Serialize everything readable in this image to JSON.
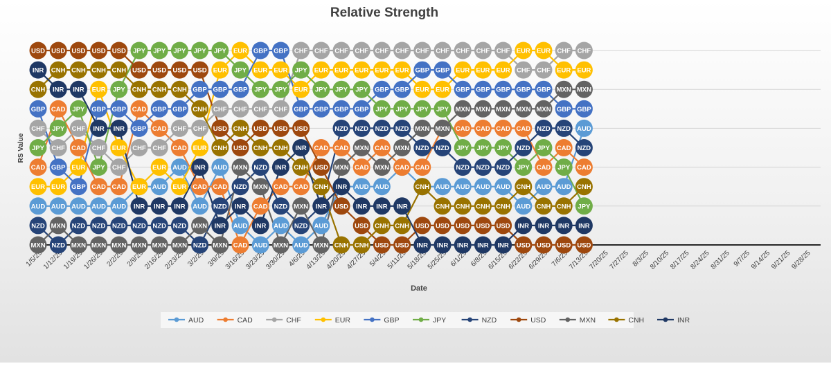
{
  "chart_data": {
    "type": "line",
    "title": "Relative Strength",
    "xlabel": "Date",
    "ylabel": "RS Value",
    "x": [
      "1/5/25",
      "1/12/25",
      "1/19/25",
      "1/26/25",
      "2/2/25",
      "2/9/25",
      "2/16/25",
      "2/23/25",
      "3/2/25",
      "3/9/25",
      "3/16/25",
      "3/23/25",
      "3/30/25",
      "4/6/25",
      "4/13/25",
      "4/20/25",
      "4/27/25",
      "5/4/25",
      "5/11/25",
      "5/18/25",
      "5/25/25",
      "6/1/25",
      "6/8/25",
      "6/15/25",
      "6/22/25",
      "6/29/25",
      "7/6/25",
      "7/13/25",
      "7/20/25",
      "7/27/25",
      "8/3/25",
      "8/10/25",
      "8/17/25",
      "8/24/25",
      "8/31/25",
      "9/7/25",
      "9/14/25",
      "9/21/25",
      "9/28/25"
    ],
    "ylim": [
      1,
      11
    ],
    "grid": true,
    "legend_position": "bottom",
    "series": [
      {
        "name": "AUD",
        "color": "#5b9bd5",
        "values": [
          3,
          3,
          3,
          3,
          3,
          4,
          4,
          5,
          3,
          5,
          2,
          1,
          2,
          1,
          2,
          4,
          4,
          4,
          5,
          4,
          4,
          4,
          4,
          4,
          3,
          4,
          4,
          7,
          null,
          null,
          null,
          null,
          null,
          null,
          null,
          null,
          null,
          null,
          null
        ]
      },
      {
        "name": "CAD",
        "color": "#ed7d31",
        "values": [
          5,
          8,
          6,
          4,
          4,
          8,
          7,
          6,
          4,
          4,
          1,
          3,
          4,
          4,
          6,
          6,
          5,
          6,
          5,
          5,
          7,
          7,
          7,
          7,
          7,
          5,
          6,
          5,
          null,
          null,
          null,
          null,
          null,
          null,
          null,
          null,
          null,
          null,
          null
        ]
      },
      {
        "name": "CHF",
        "color": "#a5a5a5",
        "values": [
          7,
          6,
          7,
          6,
          5,
          6,
          6,
          7,
          7,
          8,
          8,
          8,
          8,
          11,
          11,
          11,
          11,
          11,
          11,
          11,
          11,
          11,
          11,
          11,
          10,
          10,
          11,
          11,
          null,
          null,
          null,
          null,
          null,
          null,
          null,
          null,
          null,
          null,
          null
        ]
      },
      {
        "name": "EUR",
        "color": "#ffc000",
        "values": [
          4,
          4,
          5,
          9,
          6,
          4,
          5,
          4,
          6,
          10,
          11,
          10,
          10,
          9,
          10,
          10,
          10,
          10,
          10,
          9,
          9,
          10,
          10,
          10,
          11,
          11,
          10,
          10,
          null,
          null,
          null,
          null,
          null,
          null,
          null,
          null,
          null,
          null,
          null
        ]
      },
      {
        "name": "GBP",
        "color": "#4472c4",
        "values": [
          8,
          5,
          4,
          8,
          8,
          7,
          8,
          8,
          9,
          9,
          9,
          11,
          11,
          8,
          8,
          8,
          8,
          9,
          9,
          10,
          10,
          9,
          9,
          9,
          9,
          9,
          8,
          8,
          null,
          null,
          null,
          null,
          null,
          null,
          null,
          null,
          null,
          null,
          null
        ]
      },
      {
        "name": "JPY",
        "color": "#70ad47",
        "values": [
          6,
          7,
          8,
          5,
          9,
          11,
          11,
          11,
          11,
          11,
          10,
          9,
          9,
          10,
          9,
          9,
          9,
          8,
          8,
          8,
          8,
          6,
          6,
          6,
          5,
          6,
          5,
          3,
          null,
          null,
          null,
          null,
          null,
          null,
          null,
          null,
          null,
          null,
          null
        ]
      },
      {
        "name": "NZD",
        "color": "#264478",
        "values": [
          2,
          1,
          2,
          2,
          2,
          2,
          2,
          2,
          1,
          3,
          4,
          5,
          3,
          2,
          3,
          7,
          7,
          7,
          7,
          6,
          6,
          5,
          5,
          5,
          6,
          7,
          7,
          6,
          null,
          null,
          null,
          null,
          null,
          null,
          null,
          null,
          null,
          null,
          null
        ]
      },
      {
        "name": "USD",
        "color": "#9e480e",
        "values": [
          11,
          11,
          11,
          11,
          11,
          10,
          10,
          10,
          10,
          7,
          6,
          7,
          7,
          7,
          5,
          3,
          2,
          1,
          1,
          2,
          2,
          2,
          2,
          2,
          1,
          1,
          1,
          1,
          null,
          null,
          null,
          null,
          null,
          null,
          null,
          null,
          null,
          null,
          null
        ]
      },
      {
        "name": "MXN",
        "color": "#636363",
        "values": [
          1,
          2,
          1,
          1,
          1,
          1,
          1,
          1,
          2,
          1,
          5,
          4,
          1,
          3,
          1,
          5,
          6,
          5,
          6,
          7,
          7,
          8,
          8,
          8,
          8,
          8,
          9,
          9,
          null,
          null,
          null,
          null,
          null,
          null,
          null,
          null,
          null,
          null,
          null
        ]
      },
      {
        "name": "CNH",
        "color": "#997300",
        "values": [
          9,
          10,
          10,
          10,
          10,
          9,
          9,
          9,
          8,
          6,
          7,
          6,
          6,
          5,
          4,
          1,
          1,
          2,
          2,
          4,
          3,
          3,
          3,
          3,
          4,
          3,
          3,
          4,
          null,
          null,
          null,
          null,
          null,
          null,
          null,
          null,
          null,
          null,
          null
        ]
      },
      {
        "name": "INR",
        "color": "#1f3864",
        "values": [
          10,
          9,
          9,
          7,
          7,
          3,
          3,
          3,
          5,
          2,
          3,
          2,
          5,
          6,
          3,
          4,
          3,
          3,
          3,
          1,
          1,
          1,
          1,
          1,
          2,
          2,
          2,
          2,
          null,
          null,
          null,
          null,
          null,
          null,
          null,
          null,
          null,
          null,
          null
        ]
      }
    ]
  }
}
